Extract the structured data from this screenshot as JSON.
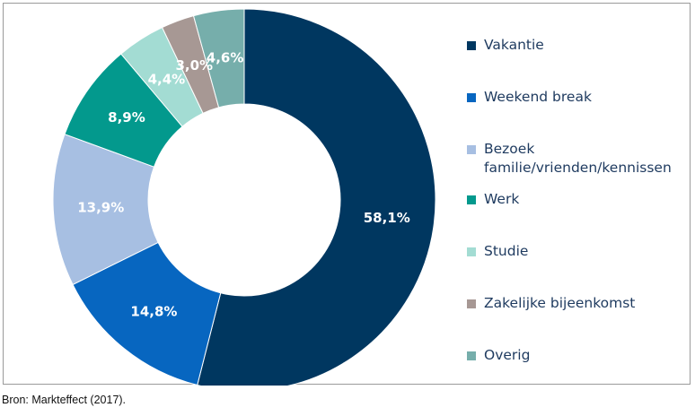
{
  "chart_data": {
    "type": "pie",
    "donut": true,
    "categories": [
      "Vakantie",
      "Weekend break",
      "Bezoek\nfamilie/vrienden/kennissen",
      "Werk",
      "Studie",
      "Zakelijke bijeenkomst",
      "Overig"
    ],
    "values": [
      58.1,
      14.8,
      13.9,
      8.9,
      4.4,
      3.0,
      4.6
    ],
    "labels": [
      "58,1%",
      "14,8%",
      "13,9%",
      "8,9%",
      "4,4%",
      "3,0%",
      "4,6%"
    ],
    "colors": [
      "#003760",
      "#0766c0",
      "#a7bfe2",
      "#03998d",
      "#a3dcd3",
      "#a79894",
      "#76aeab"
    ],
    "legend_position": "right"
  },
  "source_note": "Bron: Markteffect (2017)."
}
